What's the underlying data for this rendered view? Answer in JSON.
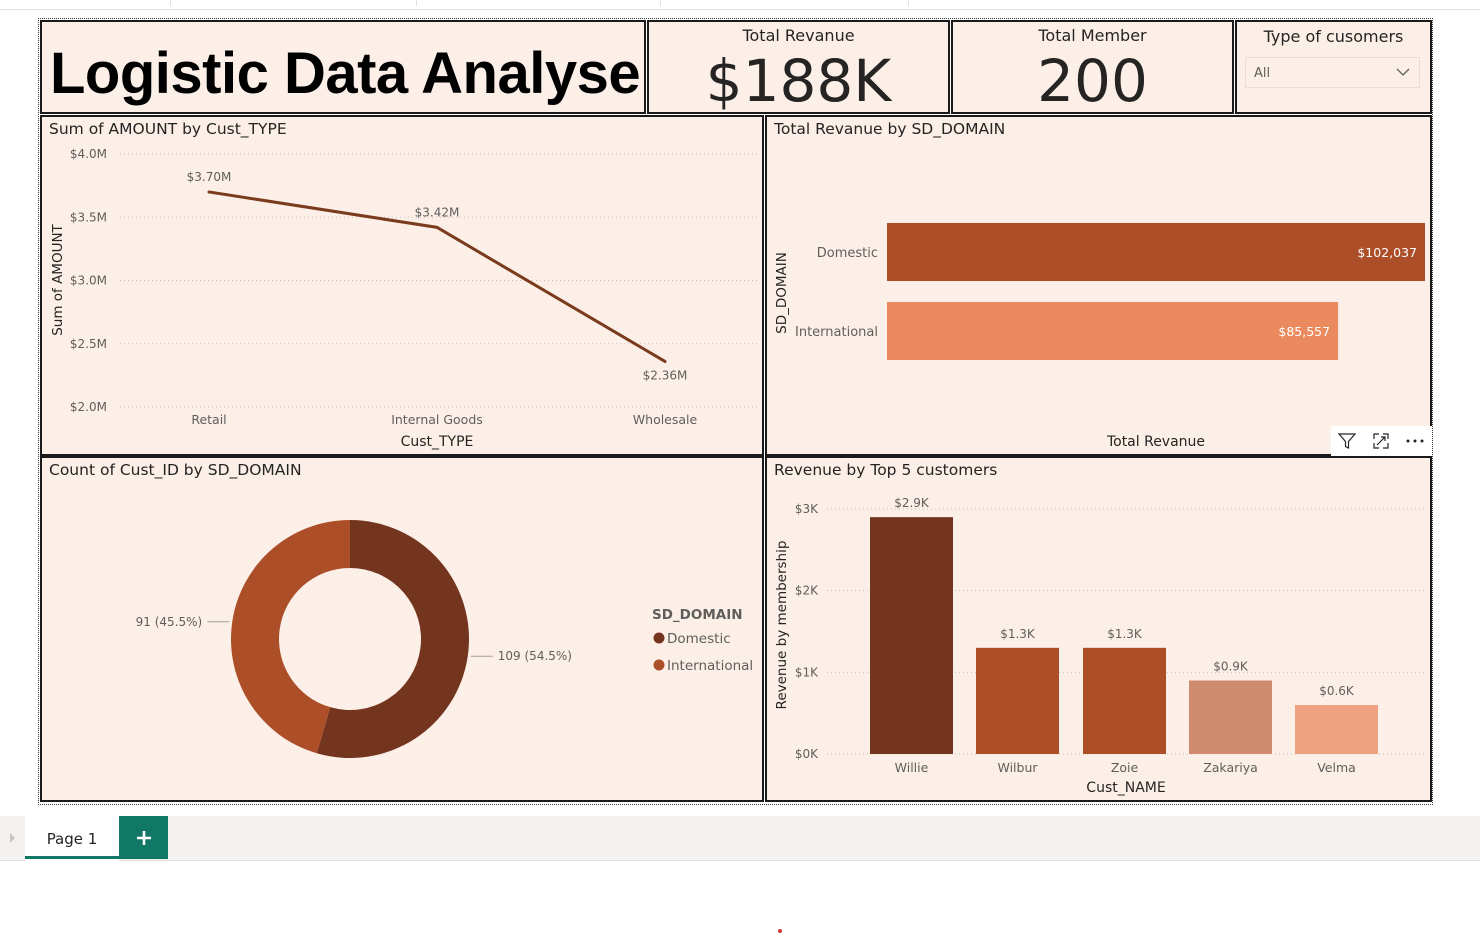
{
  "header": {
    "title": "Logistic Data Analyse"
  },
  "kpis": {
    "revenue": {
      "label": "Total Revanue",
      "value": "$188K"
    },
    "members": {
      "label": "Total Member",
      "value": "200"
    }
  },
  "slicer": {
    "title": "Type of cusomers",
    "selected": "All"
  },
  "visuals": {
    "line_title": "Sum of AMOUNT by Cust_TYPE",
    "hbar_title": "Total Revanue by SD_DOMAIN",
    "donut_title": "Count of Cust_ID by SD_DOMAIN",
    "vbar_title": "Revenue by Top 5 customers"
  },
  "visual_header": {
    "icons": [
      "filter-icon",
      "focus-mode-icon",
      "more-options-icon"
    ]
  },
  "tabs": {
    "page1": "Page 1",
    "add": "+"
  },
  "colors": {
    "card_bg": "#fbefe8",
    "line": "#7a3a1c",
    "dark": "#74351e",
    "medium": "#ac4f28",
    "light": "#cf8b6e",
    "lighter": "#efa280",
    "orange": "#eb8a5e",
    "accent": "#117865"
  },
  "chart_data": [
    {
      "type": "line",
      "title": "Sum of AMOUNT by Cust_TYPE",
      "xlabel": "Cust_TYPE",
      "ylabel": "Sum of AMOUNT",
      "categories": [
        "Retail",
        "Internal Goods",
        "Wholesale"
      ],
      "values": [
        3.7,
        3.42,
        2.36
      ],
      "data_labels": [
        "$3.70M",
        "$3.42M",
        "$2.36M"
      ],
      "ylim": [
        2.0,
        4.0
      ],
      "yticks": [
        4.0,
        3.5,
        3.0,
        2.5,
        2.0
      ],
      "ytick_labels": [
        "$4.0M",
        "$3.5M",
        "$3.0M",
        "$2.5M",
        "$2.0M"
      ],
      "grid": true
    },
    {
      "type": "bar",
      "orientation": "horizontal",
      "title": "Total Revanue by SD_DOMAIN",
      "xlabel": "Total Revanue",
      "ylabel": "SD_DOMAIN",
      "categories": [
        "Domestic",
        "International"
      ],
      "values": [
        102037,
        85557
      ],
      "data_labels": [
        "$102,037",
        "$85,557"
      ],
      "xlim": [
        0,
        102037
      ]
    },
    {
      "type": "pie",
      "donut": true,
      "title": "Count of Cust_ID by SD_DOMAIN",
      "legend_title": "SD_DOMAIN",
      "legend_position": "right",
      "categories": [
        "Domestic",
        "International"
      ],
      "values": [
        109,
        91
      ],
      "data_labels": [
        "109 (54.5%)",
        "91 (45.5%)"
      ]
    },
    {
      "type": "bar",
      "title": "Revenue by Top 5 customers",
      "xlabel": "Cust_NAME",
      "ylabel": "Revenue by membership",
      "categories": [
        "Willie",
        "Wilbur",
        "Zoie",
        "Zakariya",
        "Velma"
      ],
      "values": [
        2.9,
        1.3,
        1.3,
        0.9,
        0.6
      ],
      "data_labels": [
        "$2.9K",
        "$1.3K",
        "$1.3K",
        "$0.9K",
        "$0.6K"
      ],
      "ylim": [
        0,
        3
      ],
      "yticks": [
        3,
        2,
        1,
        0
      ],
      "ytick_labels": [
        "$3K",
        "$2K",
        "$1K",
        "$0K"
      ],
      "grid": true
    }
  ]
}
